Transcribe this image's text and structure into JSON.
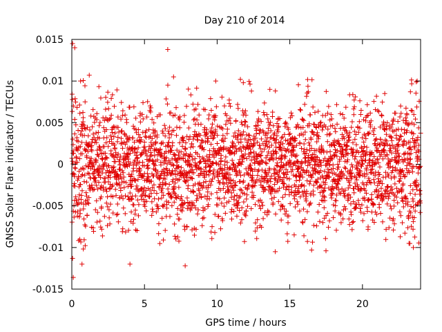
{
  "chart_data": {
    "type": "scatter",
    "title": "Day 210 of 2014",
    "xlabel": "GPS time / hours",
    "ylabel": "GNSS Solar Flare indicator / TECUs",
    "xlim": [
      0,
      24
    ],
    "ylim": [
      -0.015,
      0.015
    ],
    "xticks": [
      0,
      5,
      10,
      15,
      20
    ],
    "xtick_labels": [
      "0",
      "5",
      "10",
      "15",
      "20"
    ],
    "yticks": [
      -0.015,
      -0.01,
      -0.005,
      0,
      0.005,
      0.01,
      0.015
    ],
    "ytick_labels": [
      "-0.015",
      "-0.01",
      "-0.005",
      "0",
      "0.005",
      "0.01",
      "0.015"
    ],
    "grid": false,
    "legend": "none",
    "marker": "plus",
    "marker_color": "#e00000",
    "series": [
      {
        "points_description": "Dense noise cloud of roughly 2900 samples (about one every 30 s) spread across 0–24 h, centred near 0 with spread mostly within ±0.007 TECUs; slightly wider scatter in the first and last hour.",
        "x_start": 0,
        "x_end": 24,
        "sample_count": 2880,
        "typical_spread": 0.0035,
        "notable_points": [
          {
            "x": 0.05,
            "y": 0.0145
          },
          {
            "x": 0.2,
            "y": 0.014
          },
          {
            "x": 0.1,
            "y": -0.0136
          },
          {
            "x": 0.05,
            "y": -0.0113
          },
          {
            "x": 0.7,
            "y": -0.012
          },
          {
            "x": 1.2,
            "y": 0.0107
          },
          {
            "x": 0.6,
            "y": 0.01
          },
          {
            "x": 6.6,
            "y": 0.0138
          },
          {
            "x": 7.0,
            "y": 0.0105
          },
          {
            "x": 7.8,
            "y": -0.0122
          },
          {
            "x": 4.0,
            "y": -0.012
          },
          {
            "x": 11.6,
            "y": 0.0102
          },
          {
            "x": 11.8,
            "y": 0.0098
          },
          {
            "x": 14.0,
            "y": -0.0105
          },
          {
            "x": 16.5,
            "y": -0.0103
          },
          {
            "x": 22.6,
            "y": -0.0087
          },
          {
            "x": 23.2,
            "y": -0.0095
          },
          {
            "x": 23.5,
            "y": -0.01
          },
          {
            "x": 23.7,
            "y": 0.0099
          },
          {
            "x": 23.3,
            "y": 0.0087
          }
        ]
      }
    ]
  }
}
